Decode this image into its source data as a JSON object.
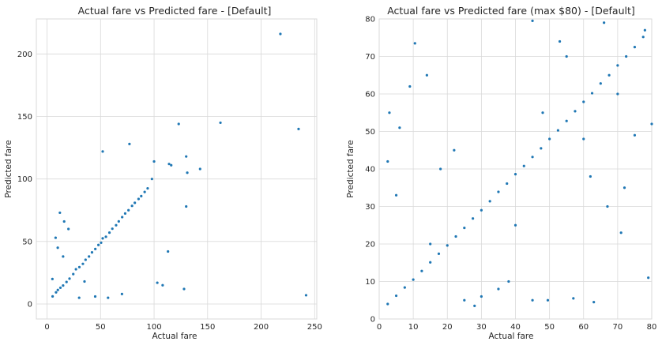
{
  "chart_data": [
    {
      "type": "scatter",
      "title": "Actual fare vs Predicted fare - [Default]",
      "xlabel": "Actual fare",
      "ylabel": "Predicted fare",
      "xlim": [
        -10,
        252
      ],
      "ylim": [
        -12,
        228
      ],
      "xticks": [
        0,
        50,
        100,
        150,
        200,
        250
      ],
      "yticks": [
        0,
        50,
        100,
        150,
        200
      ],
      "grid": true,
      "color": "#1f77b4",
      "points": [
        [
          5.2,
          6.1
        ],
        [
          8.4,
          9.3
        ],
        [
          10.1,
          11.2
        ],
        [
          12.5,
          13.0
        ],
        [
          15.0,
          14.8
        ],
        [
          18.2,
          17.6
        ],
        [
          21.0,
          20.3
        ],
        [
          24.5,
          23.9
        ],
        [
          27.0,
          27.8
        ],
        [
          30.2,
          29.5
        ],
        [
          33.5,
          32.1
        ],
        [
          36.0,
          35.4
        ],
        [
          39.2,
          38.0
        ],
        [
          42.0,
          41.3
        ],
        [
          45.1,
          44.0
        ],
        [
          48.0,
          47.2
        ],
        [
          50.5,
          49.0
        ],
        [
          52.0,
          52.5
        ],
        [
          55.0,
          53.8
        ],
        [
          58.3,
          57.1
        ],
        [
          61.0,
          60.2
        ],
        [
          64.5,
          63.0
        ],
        [
          67.0,
          66.1
        ],
        [
          70.2,
          69.5
        ],
        [
          73.0,
          72.4
        ],
        [
          76.1,
          75.0
        ],
        [
          79.4,
          78.5
        ],
        [
          82.0,
          80.9
        ],
        [
          85.5,
          84.0
        ],
        [
          88.0,
          86.3
        ],
        [
          91.2,
          89.6
        ],
        [
          94.0,
          92.5
        ],
        [
          20.0,
          60.0
        ],
        [
          16.0,
          66.0
        ],
        [
          12.0,
          73.0
        ],
        [
          8.0,
          53.0
        ],
        [
          30.0,
          5.0
        ],
        [
          45.0,
          6.0
        ],
        [
          57.0,
          5.0
        ],
        [
          70.0,
          8.0
        ],
        [
          52.0,
          122.0
        ],
        [
          77.0,
          128.0
        ],
        [
          100.0,
          114.0
        ],
        [
          98.0,
          100.0
        ],
        [
          114.0,
          112.0
        ],
        [
          116.0,
          111.0
        ],
        [
          123.0,
          144.0
        ],
        [
          130.0,
          118.0
        ],
        [
          131.0,
          105.0
        ],
        [
          143.0,
          108.0
        ],
        [
          162.0,
          145.0
        ],
        [
          218.0,
          216.0
        ],
        [
          235.0,
          140.0
        ],
        [
          242.0,
          7.0
        ],
        [
          113.0,
          42.0
        ],
        [
          108.0,
          15.0
        ],
        [
          103.0,
          17.0
        ],
        [
          128.0,
          12.0
        ],
        [
          130.0,
          78.0
        ],
        [
          10.0,
          45.0
        ],
        [
          15.0,
          38.0
        ],
        [
          5.0,
          20.0
        ],
        [
          35.0,
          18.0
        ]
      ]
    },
    {
      "type": "scatter",
      "title": "Actual fare vs Predicted fare (max $80) - [Default]",
      "xlabel": "Actual fare",
      "ylabel": "Predicted fare",
      "xlim": [
        0,
        80
      ],
      "ylim": [
        0,
        80
      ],
      "xticks": [
        0,
        10,
        20,
        30,
        40,
        50,
        60,
        70,
        80
      ],
      "yticks": [
        0,
        10,
        20,
        30,
        40,
        50,
        60,
        70,
        80
      ],
      "grid": true,
      "color": "#1f77b4",
      "points": [
        [
          2.5,
          4.0
        ],
        [
          5.0,
          6.2
        ],
        [
          7.5,
          8.4
        ],
        [
          10.0,
          10.5
        ],
        [
          12.5,
          12.8
        ],
        [
          15.0,
          15.1
        ],
        [
          17.5,
          17.4
        ],
        [
          20.0,
          19.6
        ],
        [
          22.5,
          22.0
        ],
        [
          25.0,
          24.3
        ],
        [
          27.5,
          26.8
        ],
        [
          30.0,
          29.0
        ],
        [
          32.5,
          31.4
        ],
        [
          35.0,
          33.9
        ],
        [
          37.5,
          36.1
        ],
        [
          40.0,
          38.6
        ],
        [
          42.5,
          40.8
        ],
        [
          45.0,
          43.2
        ],
        [
          47.5,
          45.5
        ],
        [
          50.0,
          48.0
        ],
        [
          52.5,
          50.3
        ],
        [
          55.0,
          52.8
        ],
        [
          57.5,
          55.4
        ],
        [
          60.0,
          57.9
        ],
        [
          62.5,
          60.2
        ],
        [
          65.0,
          62.8
        ],
        [
          67.5,
          65.0
        ],
        [
          70.0,
          67.6
        ],
        [
          72.5,
          70.0
        ],
        [
          75.0,
          72.5
        ],
        [
          77.5,
          75.2
        ],
        [
          10.5,
          73.5
        ],
        [
          14.0,
          65.0
        ],
        [
          9.0,
          62.0
        ],
        [
          3.0,
          55.0
        ],
        [
          6.0,
          51.0
        ],
        [
          2.5,
          42.0
        ],
        [
          5.0,
          33.0
        ],
        [
          45.0,
          79.5
        ],
        [
          53.0,
          74.0
        ],
        [
          55.0,
          70.0
        ],
        [
          66.0,
          79.0
        ],
        [
          78.0,
          77.0
        ],
        [
          80.0,
          52.0
        ],
        [
          25.0,
          5.0
        ],
        [
          30.0,
          6.0
        ],
        [
          45.0,
          5.0
        ],
        [
          49.5,
          5.0
        ],
        [
          57.0,
          5.5
        ],
        [
          63.0,
          4.5
        ],
        [
          71.0,
          23.0
        ],
        [
          79.0,
          11.0
        ],
        [
          67.0,
          30.0
        ],
        [
          72.0,
          35.0
        ],
        [
          60.0,
          48.0
        ],
        [
          75.0,
          49.0
        ],
        [
          62.0,
          38.0
        ],
        [
          70.0,
          60.0
        ],
        [
          38.0,
          10.0
        ],
        [
          18.0,
          40.0
        ],
        [
          22.0,
          45.0
        ],
        [
          28.0,
          3.5
        ],
        [
          35.0,
          8.0
        ],
        [
          15.0,
          20.0
        ],
        [
          40.0,
          25.0
        ],
        [
          48.0,
          55.0
        ]
      ]
    }
  ]
}
